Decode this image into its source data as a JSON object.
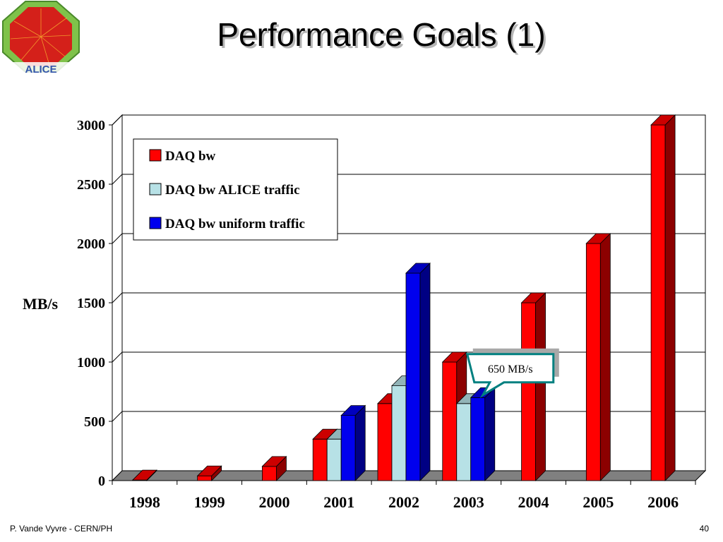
{
  "slide": {
    "title": "Performance Goals (1)",
    "logo_text": "ALICE",
    "footer_left": "P. Vande Vyvre - CERN/PH",
    "page_number": "40"
  },
  "chart_data": {
    "type": "bar",
    "title": "",
    "xlabel": "",
    "ylabel": "MB/s",
    "ylim": [
      0,
      3000
    ],
    "yticks": [
      0,
      500,
      1000,
      1500,
      2000,
      2500,
      3000
    ],
    "grid": true,
    "legend_position": "top-left",
    "categories": [
      "1998",
      "1999",
      "2000",
      "2001",
      "2002",
      "2003",
      "2004",
      "2005",
      "2006"
    ],
    "series": [
      {
        "name": "DAQ bw",
        "color": "#ff0000",
        "values": [
          5,
          40,
          120,
          350,
          650,
          1000,
          1500,
          2000,
          3000
        ]
      },
      {
        "name": "DAQ bw ALICE traffic",
        "color": "#b7e1e6",
        "values": [
          null,
          null,
          null,
          350,
          800,
          650,
          null,
          null,
          null
        ]
      },
      {
        "name": "DAQ bw uniform traffic",
        "color": "#0000ee",
        "values": [
          null,
          null,
          null,
          550,
          1750,
          700,
          null,
          null,
          null
        ]
      }
    ],
    "annotations": [
      {
        "text": "650 MB/s",
        "category": "2003",
        "series": "DAQ bw ALICE traffic"
      }
    ]
  }
}
